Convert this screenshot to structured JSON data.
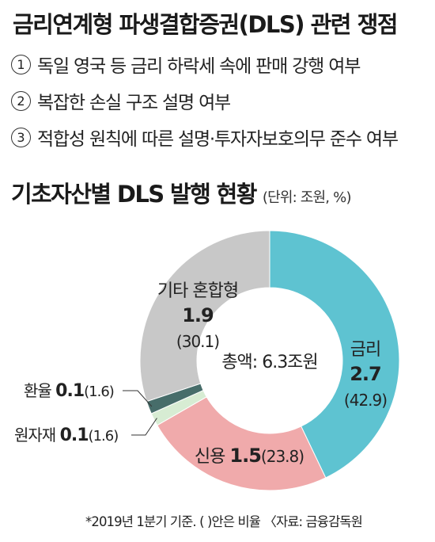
{
  "title": "금리연계형 파생결합증권(DLS) 관련 쟁점",
  "issues": [
    {
      "num": "1",
      "text": "독일 영국 등 금리 하락세 속에 판매 강행 여부"
    },
    {
      "num": "2",
      "text": "복잡한 손실 구조 설명 여부"
    },
    {
      "num": "3",
      "text": "적합성 원칙에 따른 설명·투자자보호의무 준수 여부"
    }
  ],
  "chart_title": "기초자산별 DLS 발행 현황",
  "unit": "(단위: 조원, %)",
  "footnote": "*2019년 1분기 기준. ( )안은 비율 〈자료: 금융감독원",
  "chart_data": {
    "type": "pie",
    "donut": true,
    "center_label": "총액: 6.3조원",
    "total": 6.3,
    "slices": [
      {
        "name": "금리",
        "value": 2.7,
        "percent": 42.9,
        "value_text": "2.7",
        "percent_text": "(42.9)",
        "color": "#5ec3d1"
      },
      {
        "name": "신용",
        "value": 1.5,
        "percent": 23.8,
        "value_text": "1.5",
        "percent_text": "(23.8)",
        "color": "#f0aaab"
      },
      {
        "name": "원자재",
        "value": 0.1,
        "percent": 1.6,
        "value_text": "0.1",
        "percent_text": "(1.6)",
        "color": "#d7ecd3"
      },
      {
        "name": "환율",
        "value": 0.1,
        "percent": 1.6,
        "value_text": "0.1",
        "percent_text": "(1.6)",
        "color": "#476d6a"
      },
      {
        "name": "기타 혼합형",
        "value": 1.9,
        "percent": 30.1,
        "value_text": "1.9",
        "percent_text": "(30.1)",
        "color": "#c8c8c8"
      }
    ]
  }
}
